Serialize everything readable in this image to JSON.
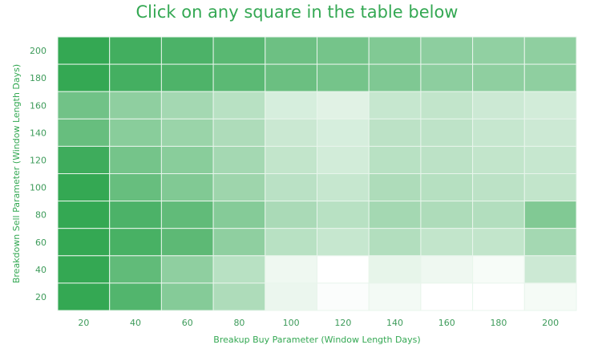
{
  "chart_data": {
    "type": "heatmap",
    "title": "Click on any square in the table below",
    "xlabel": "Breakup Buy Parameter (Window Length Days)",
    "ylabel": "Breakdown Sell Parameter (Window Length Days)",
    "x": [
      20,
      40,
      60,
      80,
      100,
      120,
      140,
      160,
      180,
      200
    ],
    "y": [
      200,
      180,
      160,
      140,
      120,
      100,
      80,
      60,
      40,
      20
    ],
    "value_scale": [
      0,
      1
    ],
    "color_low": "#ffffff",
    "color_high": "#34a853",
    "values": [
      [
        1.0,
        0.93,
        0.88,
        0.82,
        0.72,
        0.68,
        0.62,
        0.56,
        0.54,
        0.55
      ],
      [
        1.0,
        0.92,
        0.87,
        0.81,
        0.73,
        0.68,
        0.63,
        0.56,
        0.55,
        0.55
      ],
      [
        0.7,
        0.55,
        0.45,
        0.35,
        0.2,
        0.15,
        0.28,
        0.3,
        0.25,
        0.22
      ],
      [
        0.75,
        0.58,
        0.5,
        0.4,
        0.26,
        0.2,
        0.33,
        0.32,
        0.28,
        0.25
      ],
      [
        0.95,
        0.68,
        0.58,
        0.45,
        0.3,
        0.22,
        0.35,
        0.33,
        0.3,
        0.28
      ],
      [
        1.0,
        0.75,
        0.62,
        0.48,
        0.34,
        0.28,
        0.4,
        0.36,
        0.33,
        0.3
      ],
      [
        1.0,
        0.88,
        0.78,
        0.6,
        0.42,
        0.35,
        0.45,
        0.4,
        0.38,
        0.62
      ],
      [
        1.0,
        0.9,
        0.8,
        0.55,
        0.35,
        0.28,
        0.38,
        0.3,
        0.3,
        0.45
      ],
      [
        1.0,
        0.78,
        0.55,
        0.35,
        0.08,
        0.0,
        0.12,
        0.08,
        0.04,
        0.25
      ],
      [
        1.0,
        0.85,
        0.6,
        0.4,
        0.1,
        0.02,
        0.06,
        0.0,
        0.0,
        0.05
      ]
    ],
    "grid": true
  }
}
